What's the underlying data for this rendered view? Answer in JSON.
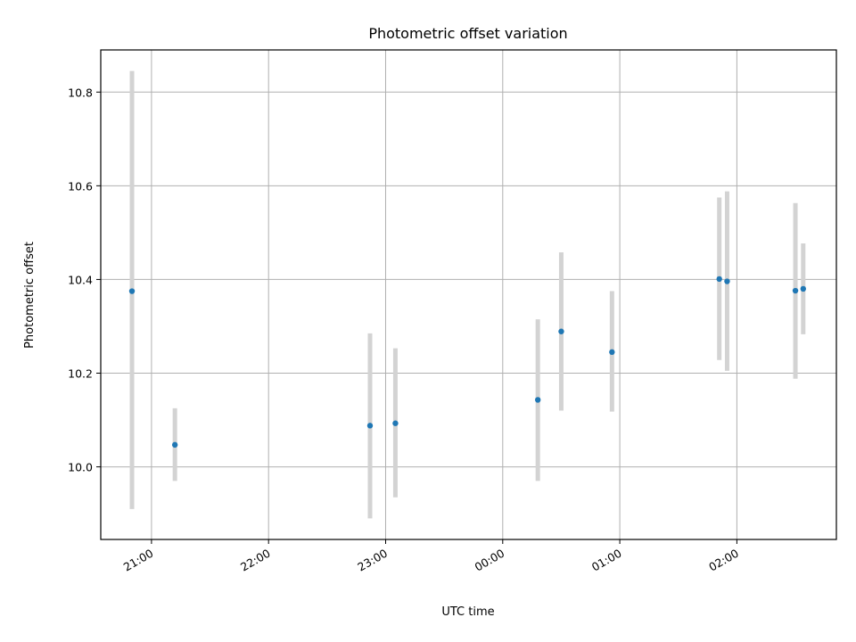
{
  "chart_data": {
    "type": "scatter",
    "title": "Photometric offset variation",
    "xlabel": "UTC time",
    "ylabel": "Photometric offset",
    "x_axis": "time",
    "xlim": [
      "20:34",
      "02:51"
    ],
    "ylim": [
      9.845,
      10.89
    ],
    "xticks": [
      "21:00",
      "22:00",
      "23:00",
      "00:00",
      "01:00",
      "02:00"
    ],
    "yticks": [
      10.0,
      10.2,
      10.4,
      10.6,
      10.8
    ],
    "grid": true,
    "colors": {
      "point": "#1f77b4",
      "errorbar": "#d3d3d3"
    },
    "points": [
      {
        "x": "20:50",
        "y": 10.375,
        "ylow": 9.91,
        "yhigh": 10.845
      },
      {
        "x": "21:12",
        "y": 10.047,
        "ylow": 9.97,
        "yhigh": 10.125
      },
      {
        "x": "22:52",
        "y": 10.088,
        "ylow": 9.89,
        "yhigh": 10.285
      },
      {
        "x": "23:05",
        "y": 10.093,
        "ylow": 9.935,
        "yhigh": 10.253
      },
      {
        "x": "00:18",
        "y": 10.143,
        "ylow": 9.97,
        "yhigh": 10.315
      },
      {
        "x": "00:30",
        "y": 10.289,
        "ylow": 10.12,
        "yhigh": 10.458
      },
      {
        "x": "00:56",
        "y": 10.245,
        "ylow": 10.118,
        "yhigh": 10.375
      },
      {
        "x": "01:51",
        "y": 10.401,
        "ylow": 10.228,
        "yhigh": 10.575
      },
      {
        "x": "01:55",
        "y": 10.396,
        "ylow": 10.205,
        "yhigh": 10.588
      },
      {
        "x": "02:30",
        "y": 10.376,
        "ylow": 10.188,
        "yhigh": 10.563
      },
      {
        "x": "02:34",
        "y": 10.38,
        "ylow": 10.283,
        "yhigh": 10.477
      }
    ]
  }
}
